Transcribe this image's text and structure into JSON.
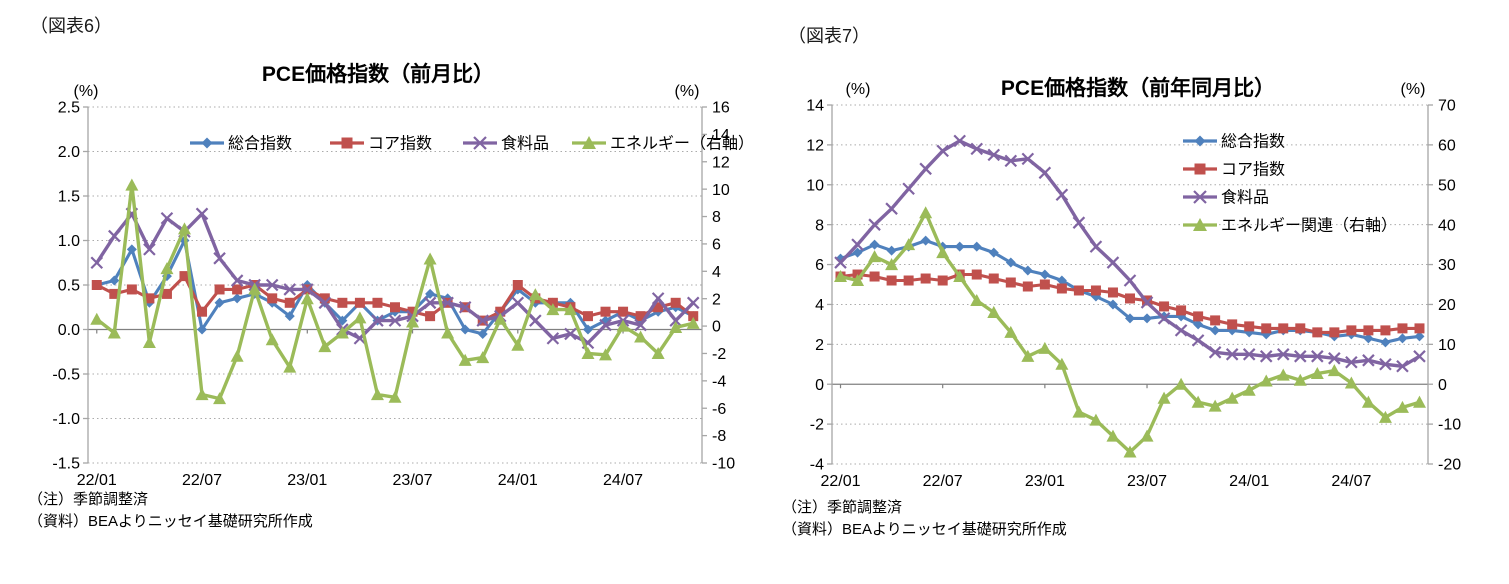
{
  "page": {
    "background": "#ffffff"
  },
  "colors": {
    "headline": "#4F81BD",
    "core": "#C0504D",
    "food": "#8064A2",
    "energy": "#9BBB59",
    "gridline": "#ababab",
    "zero_line": "#808080",
    "axis_spine": "#a6a6a6"
  },
  "chart_data": [
    {
      "fig_label": "（図表6）",
      "type": "line",
      "title": "PCE価格指数（前月比）",
      "left_axis": {
        "unit": "(%)",
        "min": -1.5,
        "max": 2.5,
        "step": 0.5,
        "labels": [
          "2.5",
          "2.0",
          "1.5",
          "1.0",
          "0.5",
          "0.0",
          "-0.5",
          "-1.0",
          "-1.5"
        ]
      },
      "right_axis": {
        "unit": "(%)",
        "min": -10,
        "max": 16,
        "step": 2,
        "labels": [
          "16",
          "14",
          "12",
          "10",
          "8",
          "6",
          "4",
          "2",
          "0",
          "-2",
          "-4",
          "-6",
          "-8",
          "-10"
        ]
      },
      "x_tick_labels": [
        "22/01",
        "22/07",
        "23/01",
        "23/07",
        "24/01",
        "24/07"
      ],
      "x_label_interval": 6,
      "months": [
        "22/01",
        "22/02",
        "22/03",
        "22/04",
        "22/05",
        "22/06",
        "22/07",
        "22/08",
        "22/09",
        "22/10",
        "22/11",
        "22/12",
        "23/01",
        "23/02",
        "23/03",
        "23/04",
        "23/05",
        "23/06",
        "23/07",
        "23/08",
        "23/09",
        "23/10",
        "23/11",
        "23/12",
        "24/01",
        "24/02",
        "24/03",
        "24/04",
        "24/05",
        "24/06",
        "24/07",
        "24/08",
        "24/09",
        "24/10",
        "24/11"
      ],
      "legend_position": "top-horizontal",
      "series": [
        {
          "name": "総合指数",
          "axis": "left",
          "color": "#4F81BD",
          "marker": "diamond",
          "values": [
            0.5,
            0.55,
            0.9,
            0.3,
            0.6,
            1.0,
            0.0,
            0.3,
            0.35,
            0.4,
            0.3,
            0.15,
            0.5,
            0.3,
            0.1,
            0.3,
            0.1,
            0.2,
            0.2,
            0.4,
            0.35,
            0.0,
            -0.05,
            0.2,
            0.45,
            0.3,
            0.3,
            0.3,
            0.0,
            0.1,
            0.2,
            0.1,
            0.2,
            0.25,
            0.15
          ]
        },
        {
          "name": "コア指数",
          "axis": "left",
          "color": "#C0504D",
          "marker": "square",
          "values": [
            0.5,
            0.4,
            0.45,
            0.35,
            0.4,
            0.6,
            0.2,
            0.45,
            0.45,
            0.5,
            0.35,
            0.3,
            0.45,
            0.35,
            0.3,
            0.3,
            0.3,
            0.25,
            0.2,
            0.15,
            0.3,
            0.25,
            0.1,
            0.2,
            0.5,
            0.35,
            0.3,
            0.25,
            0.15,
            0.2,
            0.2,
            0.15,
            0.25,
            0.3,
            0.15
          ]
        },
        {
          "name": "食料品",
          "axis": "left",
          "color": "#8064A2",
          "marker": "x",
          "values": [
            0.75,
            1.05,
            1.3,
            0.9,
            1.25,
            1.1,
            1.3,
            0.8,
            0.55,
            0.5,
            0.5,
            0.45,
            0.45,
            0.3,
            0.0,
            -0.1,
            0.1,
            0.1,
            0.15,
            0.3,
            0.3,
            0.25,
            0.1,
            0.15,
            0.3,
            0.1,
            -0.1,
            -0.05,
            -0.15,
            0.05,
            0.1,
            0.05,
            0.35,
            0.1,
            0.3
          ]
        },
        {
          "name": "エネルギー（右軸）",
          "axis": "right",
          "color": "#9BBB59",
          "marker": "triangle",
          "values": [
            0.5,
            -0.5,
            10.3,
            -1.2,
            4.2,
            7.1,
            -5.0,
            -5.3,
            -2.2,
            2.7,
            -1.0,
            -3.0,
            2.0,
            -1.5,
            -0.5,
            0.6,
            -5.0,
            -5.2,
            0.3,
            4.9,
            -0.5,
            -2.5,
            -2.3,
            0.5,
            -1.4,
            2.3,
            1.2,
            1.2,
            -2.0,
            -2.1,
            0.0,
            -0.8,
            -2.0,
            -0.1,
            0.2
          ]
        }
      ],
      "notes": [
        "（注）季節調整済",
        "（資料）BEAよりニッセイ基礎研究所作成"
      ]
    },
    {
      "fig_label": "（図表7）",
      "type": "line",
      "title": "PCE価格指数（前年同月比）",
      "left_axis": {
        "unit": "(%)",
        "min": -4,
        "max": 14,
        "step": 2,
        "labels": [
          "14",
          "12",
          "10",
          "8",
          "6",
          "4",
          "2",
          "0",
          "-2",
          "-4"
        ]
      },
      "right_axis": {
        "unit": "(%)",
        "min": -20,
        "max": 70,
        "step": 10,
        "labels": [
          "70",
          "60",
          "50",
          "40",
          "30",
          "20",
          "10",
          "0",
          "-10",
          "-20"
        ]
      },
      "x_tick_labels": [
        "22/01",
        "22/07",
        "23/01",
        "23/07",
        "24/01",
        "24/07"
      ],
      "x_label_interval": 6,
      "months": [
        "22/01",
        "22/02",
        "22/03",
        "22/04",
        "22/05",
        "22/06",
        "22/07",
        "22/08",
        "22/09",
        "22/10",
        "22/11",
        "22/12",
        "23/01",
        "23/02",
        "23/03",
        "23/04",
        "23/05",
        "23/06",
        "23/07",
        "23/08",
        "23/09",
        "23/10",
        "23/11",
        "23/12",
        "24/01",
        "24/02",
        "24/03",
        "24/04",
        "24/05",
        "24/06",
        "24/07",
        "24/08",
        "24/09",
        "24/10",
        "24/11"
      ],
      "legend_position": "inside-right-vertical",
      "series": [
        {
          "name": "総合指数",
          "axis": "left",
          "color": "#4F81BD",
          "marker": "diamond",
          "values": [
            6.3,
            6.6,
            7.0,
            6.7,
            6.9,
            7.2,
            6.9,
            6.9,
            6.9,
            6.6,
            6.1,
            5.7,
            5.5,
            5.2,
            4.7,
            4.4,
            4.0,
            3.3,
            3.3,
            3.4,
            3.4,
            3.0,
            2.7,
            2.7,
            2.6,
            2.5,
            2.7,
            2.7,
            2.6,
            2.4,
            2.5,
            2.3,
            2.1,
            2.3,
            2.4
          ]
        },
        {
          "name": "コア指数",
          "axis": "left",
          "color": "#C0504D",
          "marker": "square",
          "values": [
            5.4,
            5.5,
            5.4,
            5.2,
            5.2,
            5.3,
            5.2,
            5.5,
            5.5,
            5.3,
            5.1,
            4.9,
            5.0,
            4.8,
            4.7,
            4.7,
            4.6,
            4.3,
            4.2,
            3.9,
            3.7,
            3.4,
            3.2,
            3.0,
            2.9,
            2.8,
            2.8,
            2.8,
            2.6,
            2.6,
            2.7,
            2.7,
            2.7,
            2.8,
            2.8
          ]
        },
        {
          "name": "食料品",
          "axis": "left",
          "color": "#8064A2",
          "marker": "x",
          "values": [
            6.1,
            7.0,
            8.0,
            8.8,
            9.8,
            10.8,
            11.7,
            12.2,
            11.8,
            11.5,
            11.2,
            11.3,
            10.6,
            9.5,
            8.1,
            6.9,
            6.1,
            5.2,
            4.1,
            3.3,
            2.7,
            2.2,
            1.6,
            1.5,
            1.5,
            1.4,
            1.5,
            1.4,
            1.4,
            1.3,
            1.1,
            1.2,
            1.0,
            0.9,
            1.4
          ]
        },
        {
          "name": "エネルギー関連（右軸）",
          "axis": "right",
          "color": "#9BBB59",
          "marker": "triangle",
          "values": [
            27,
            26,
            32,
            30,
            35,
            43,
            33,
            27,
            21,
            18,
            13,
            7,
            9,
            5,
            -7,
            -9,
            -13,
            -17,
            -13,
            -3.5,
            0,
            -4.5,
            -5.5,
            -3.5,
            -1.5,
            0.8,
            2.3,
            1.0,
            2.7,
            3.4,
            0.3,
            -4.5,
            -8.3,
            -5.8,
            -4.5
          ]
        }
      ],
      "notes": [
        "（注）季節調整済",
        "（資料）BEAよりニッセイ基礎研究所作成"
      ]
    }
  ]
}
